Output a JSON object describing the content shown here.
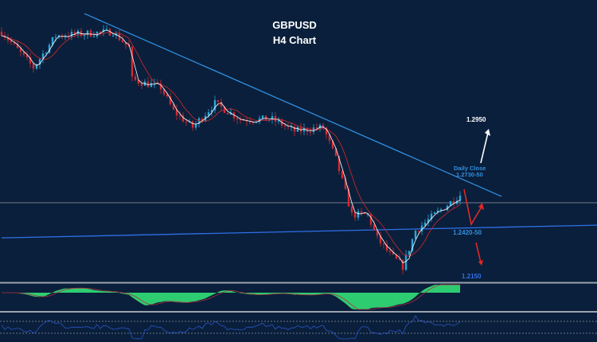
{
  "chart_data": {
    "type": "candlestick",
    "title": "GBPUSD",
    "subtitle": "H4 Chart",
    "bar_count": 145,
    "price_range": [
      1.209,
      1.358
    ],
    "price_path": [
      {
        "bar": 0,
        "price": 1.3416
      },
      {
        "bar": 10,
        "price": 1.323
      },
      {
        "bar": 17,
        "price": 1.3395
      },
      {
        "bar": 35,
        "price": 1.3416
      },
      {
        "bar": 40,
        "price": 1.3333
      },
      {
        "bar": 41,
        "price": 1.3168
      },
      {
        "bar": 50,
        "price": 1.3127
      },
      {
        "bar": 54,
        "price": 1.3004
      },
      {
        "bar": 60,
        "price": 1.2921
      },
      {
        "bar": 67,
        "price": 1.3045
      },
      {
        "bar": 75,
        "price": 1.2962
      },
      {
        "bar": 85,
        "price": 1.2962
      },
      {
        "bar": 92,
        "price": 1.2901
      },
      {
        "bar": 101,
        "price": 1.2921
      },
      {
        "bar": 105,
        "price": 1.2756
      },
      {
        "bar": 110,
        "price": 1.2468
      },
      {
        "bar": 115,
        "price": 1.2468
      },
      {
        "bar": 118,
        "price": 1.2344
      },
      {
        "bar": 122,
        "price": 1.2262
      },
      {
        "bar": 126,
        "price": 1.22
      },
      {
        "bar": 130,
        "price": 1.2386
      },
      {
        "bar": 136,
        "price": 1.2468
      },
      {
        "bar": 144,
        "price": 1.2571
      }
    ],
    "lines": {
      "downtrend": {
        "from": {
          "bar": 26,
          "price": 1.351
        },
        "to": {
          "bar": 157,
          "price": 1.2563
        }
      },
      "horizontal": {
        "price": 1.253
      },
      "support": {
        "from": {
          "bar": 0,
          "price": 1.2348
        },
        "to": {
          "bar": 187,
          "price": 1.2414
        }
      }
    },
    "annotations": {
      "target_up": "1.2950",
      "daily_close_label": "Daily Close",
      "daily_close_value": "1.2730-50",
      "support_level": "1.2420-50",
      "target_down": "1.2150"
    }
  },
  "colors": {
    "background": "#0a1f3b",
    "candle_up": "#2aa6d8",
    "candle_down": "#d42a30",
    "trendline": "#2f8fe0",
    "support": "#2f6fe8",
    "histogram": "#2ecc71",
    "rsi": "#2a55c8"
  }
}
